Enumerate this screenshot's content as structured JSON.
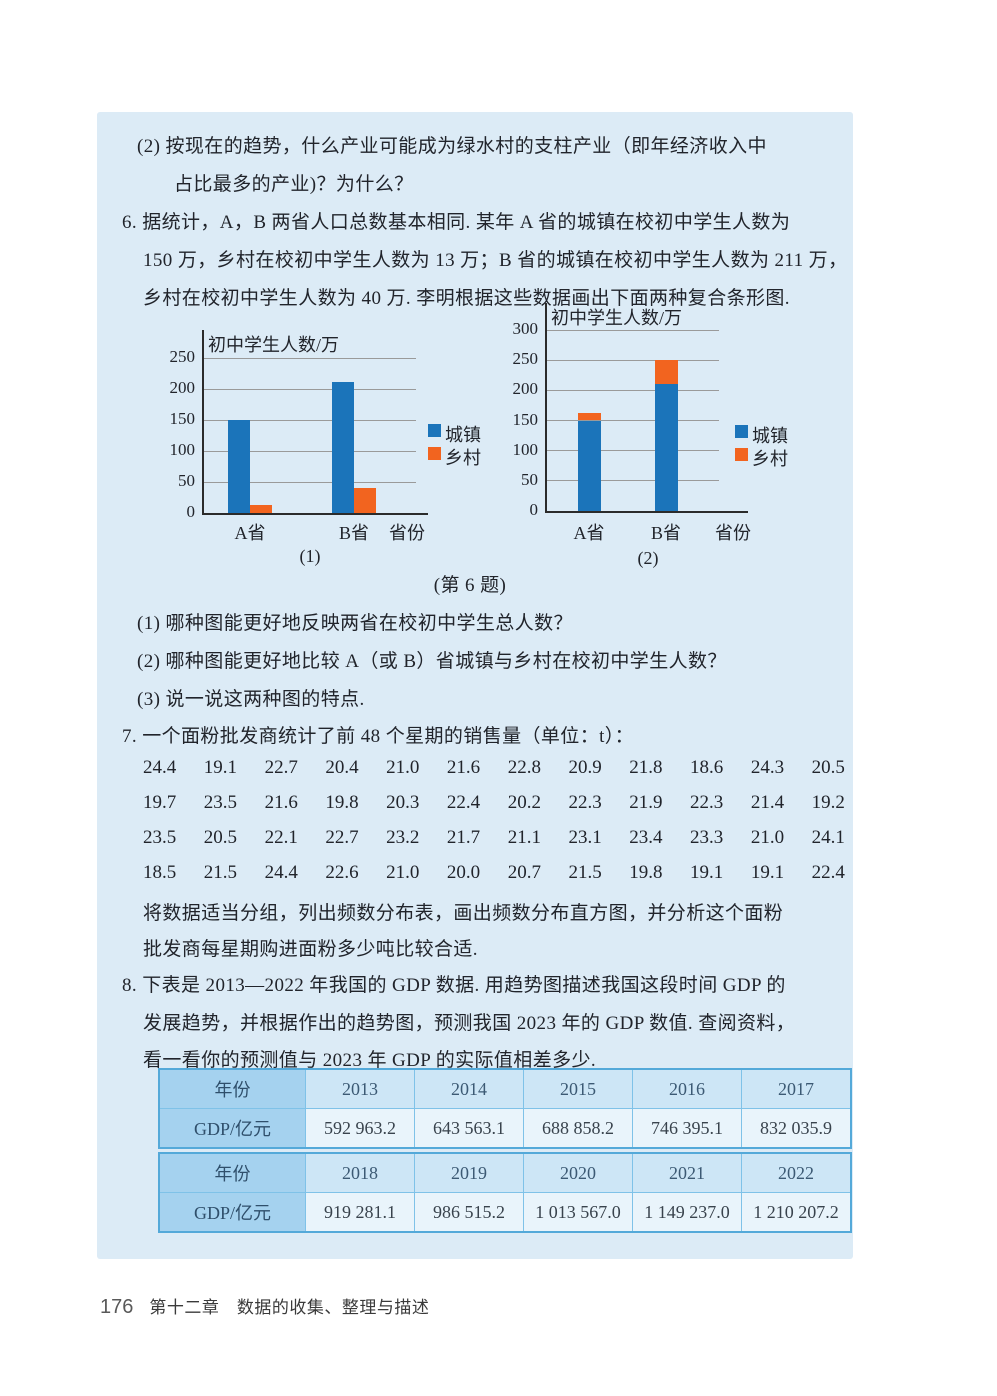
{
  "page": {
    "panel_bg": "#dcebf6",
    "footer": {
      "page_number": "176",
      "chapter": "第十二章　数据的收集、整理与描述"
    }
  },
  "text_blocks": {
    "item2": [
      "(2) 按现在的趋势，什么产业可能成为绿水村的支柱产业（即年经济收入中",
      "占比最多的产业)？为什么？"
    ],
    "q6": [
      "6. 据统计，A，B 两省人口总数基本相同. 某年 A 省的城镇在校初中学生人数为",
      "150 万，乡村在校初中学生人数为 13 万；B 省的城镇在校初中学生人数为 211 万，",
      "乡村在校初中学生人数为 40 万. 李明根据这些数据画出下面两种复合条形图."
    ],
    "fig_caption": [
      "(第 6 题)"
    ],
    "q6_subs": [
      "(1) 哪种图能更好地反映两省在校初中学生总人数？",
      "(2) 哪种图能更好地比较 A（或 B）省城镇与乡村在校初中学生人数？",
      "(3) 说一说这两种图的特点."
    ],
    "q7_lead": [
      "7. 一个面粉批发商统计了前 48 个星期的销售量（单位：t）："
    ],
    "q7_data_rows": [
      [
        "24.4",
        "19.1",
        "22.7",
        "20.4",
        "21.0",
        "21.6",
        "22.8",
        "20.9",
        "21.8",
        "18.6",
        "24.3",
        "20.5"
      ],
      [
        "19.7",
        "23.5",
        "21.6",
        "19.8",
        "20.3",
        "22.4",
        "20.2",
        "22.3",
        "21.9",
        "22.3",
        "21.4",
        "19.2"
      ],
      [
        "23.5",
        "20.5",
        "22.1",
        "22.7",
        "23.2",
        "21.7",
        "21.1",
        "23.1",
        "23.4",
        "23.3",
        "21.0",
        "24.1"
      ],
      [
        "18.5",
        "21.5",
        "24.4",
        "22.6",
        "21.0",
        "20.0",
        "20.7",
        "21.5",
        "19.8",
        "19.1",
        "19.1",
        "22.4"
      ]
    ],
    "q7_tail": [
      "将数据适当分组，列出频数分布表，画出频数分布直方图，并分析这个面粉",
      "批发商每星期购进面粉多少吨比较合适."
    ],
    "q8": [
      "8. 下表是 2013—2022 年我国的 GDP 数据. 用趋势图描述我国这段时间 GDP 的",
      "发展趋势，并根据作出的趋势图，预测我国 2023 年的 GDP 数值. 查阅资料，",
      "看一看你的预测值与 2023 年 GDP 的实际值相差多少."
    ]
  },
  "gdp_table": {
    "rows": [
      {
        "label": "年份",
        "type": "year",
        "cells": [
          "2013",
          "2014",
          "2015",
          "2016",
          "2017"
        ]
      },
      {
        "label": "GDP/亿元",
        "type": "val",
        "cells": [
          "592 963.2",
          "643 563.1",
          "688 858.2",
          "746 395.1",
          "832 035.9"
        ]
      },
      {
        "label": "年份",
        "type": "year",
        "cells": [
          "2018",
          "2019",
          "2020",
          "2021",
          "2022"
        ]
      },
      {
        "label": "GDP/亿元",
        "type": "val",
        "cells": [
          "919 281.1",
          "986 515.2",
          "1 013 567.0",
          "1 149 237.0",
          "1 210 207.2"
        ]
      }
    ]
  },
  "chart_data": [
    {
      "type": "bar",
      "variant": "grouped",
      "title": "初中学生人数/万",
      "xlabel": "省份",
      "categories": [
        "A省",
        "B省"
      ],
      "series": [
        {
          "name": "城镇",
          "color": "#1b74ba",
          "values": [
            150,
            211
          ]
        },
        {
          "name": "乡村",
          "color": "#f2641f",
          "values": [
            13,
            40
          ]
        }
      ],
      "yticks": [
        0,
        50,
        100,
        150,
        200,
        250
      ],
      "ylim": [
        0,
        280
      ],
      "grid": true,
      "legend_position": "right",
      "caption": "(1)"
    },
    {
      "type": "bar",
      "variant": "stacked",
      "title": "初中学生人数/万",
      "xlabel": "省份",
      "categories": [
        "A省",
        "B省"
      ],
      "series": [
        {
          "name": "城镇",
          "color": "#1b74ba",
          "values": [
            150,
            211
          ]
        },
        {
          "name": "乡村",
          "color": "#f2641f",
          "values": [
            13,
            40
          ]
        }
      ],
      "yticks": [
        0,
        50,
        100,
        150,
        200,
        250,
        300
      ],
      "ylim": [
        0,
        330
      ],
      "grid": true,
      "legend_position": "right",
      "caption": "(2)"
    }
  ]
}
